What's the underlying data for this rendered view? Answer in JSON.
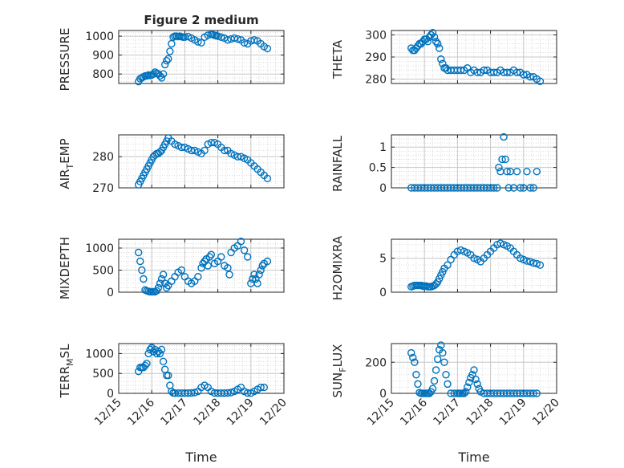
{
  "figure": {
    "title": "Figure 2 medium",
    "marker_color": "#0072BD"
  },
  "x_axis": {
    "label": "Time",
    "ticks": [
      "12/15",
      "12/16",
      "12/17",
      "12/18",
      "12/19",
      "12/20"
    ]
  },
  "chart_data": [
    {
      "type": "scatter",
      "ylabel": "PRESSURE",
      "title": "Figure 2 medium",
      "xlim": [
        15,
        20
      ],
      "ylim": [
        750,
        1030
      ],
      "yticks": [
        800,
        900,
        1000
      ],
      "x": [
        15.6,
        15.65,
        15.7,
        15.75,
        15.8,
        15.85,
        15.9,
        15.95,
        16.0,
        16.05,
        16.1,
        16.15,
        16.2,
        16.25,
        16.3,
        16.35,
        16.4,
        16.45,
        16.5,
        16.55,
        16.6,
        16.65,
        16.7,
        16.75,
        16.8,
        16.85,
        16.9,
        16.95,
        17.0,
        17.1,
        17.2,
        17.3,
        17.4,
        17.5,
        17.6,
        17.7,
        17.8,
        17.85,
        17.9,
        17.95,
        18.0,
        18.1,
        18.2,
        18.3,
        18.4,
        18.5,
        18.6,
        18.7,
        18.8,
        18.9,
        19.0,
        19.1,
        19.2,
        19.3,
        19.4,
        19.5
      ],
      "y": [
        760,
        775,
        780,
        785,
        790,
        790,
        795,
        792,
        795,
        800,
        810,
        805,
        800,
        790,
        780,
        800,
        850,
        870,
        880,
        920,
        960,
        995,
        1000,
        1000,
        998,
        1000,
        997,
        995,
        995,
        998,
        990,
        980,
        970,
        965,
        995,
        1005,
        1010,
        1008,
        1005,
        1003,
        1000,
        995,
        990,
        980,
        985,
        990,
        985,
        980,
        965,
        960,
        975,
        980,
        975,
        960,
        945,
        935
      ]
    },
    {
      "type": "scatter",
      "ylabel": "THETA",
      "xlim": [
        15,
        20
      ],
      "ylim": [
        278,
        302
      ],
      "yticks": [
        280,
        290,
        300
      ],
      "x": [
        15.6,
        15.65,
        15.7,
        15.75,
        15.8,
        15.85,
        15.9,
        15.95,
        16.0,
        16.05,
        16.1,
        16.15,
        16.2,
        16.25,
        16.3,
        16.35,
        16.4,
        16.45,
        16.5,
        16.55,
        16.6,
        16.65,
        16.7,
        16.8,
        16.9,
        17.0,
        17.1,
        17.2,
        17.3,
        17.4,
        17.5,
        17.6,
        17.7,
        17.8,
        17.9,
        18.0,
        18.1,
        18.2,
        18.3,
        18.4,
        18.5,
        18.6,
        18.7,
        18.8,
        18.9,
        19.0,
        19.1,
        19.2,
        19.3,
        19.4,
        19.5
      ],
      "y": [
        294,
        293,
        293,
        294,
        295,
        296,
        296,
        297,
        298,
        298,
        297,
        299,
        300,
        301,
        299,
        297,
        296,
        294,
        289,
        287,
        285,
        285,
        284,
        284,
        284,
        284,
        284,
        284,
        285,
        283,
        284,
        283,
        283,
        284,
        284,
        283,
        283,
        283,
        284,
        283,
        283,
        283,
        284,
        283,
        283,
        282,
        282,
        281,
        281,
        280,
        279
      ]
    },
    {
      "type": "scatter",
      "ylabel": "AIR_TEMP",
      "xlim": [
        15,
        20
      ],
      "ylim": [
        270,
        287
      ],
      "yticks": [
        270,
        280
      ],
      "x": [
        15.6,
        15.65,
        15.7,
        15.75,
        15.8,
        15.85,
        15.9,
        15.95,
        16.0,
        16.05,
        16.1,
        16.15,
        16.2,
        16.25,
        16.3,
        16.35,
        16.4,
        16.45,
        16.5,
        16.6,
        16.7,
        16.8,
        16.9,
        17.0,
        17.1,
        17.2,
        17.3,
        17.4,
        17.5,
        17.6,
        17.7,
        17.8,
        17.9,
        18.0,
        18.1,
        18.2,
        18.3,
        18.4,
        18.5,
        18.6,
        18.7,
        18.8,
        18.9,
        19.0,
        19.1,
        19.2,
        19.3,
        19.4,
        19.5
      ],
      "y": [
        271,
        272,
        273,
        274,
        275,
        276,
        277,
        278,
        279,
        280,
        280.5,
        281,
        281,
        281.5,
        282,
        283,
        284,
        285,
        286,
        285,
        284,
        283.5,
        283,
        283,
        282.5,
        282,
        282,
        281.5,
        281,
        282,
        284,
        284.5,
        284.5,
        284,
        283,
        282,
        282,
        281,
        280.5,
        280,
        280,
        279.5,
        279,
        278,
        277,
        276,
        275,
        274,
        273
      ]
    },
    {
      "type": "scatter",
      "ylabel": "RAINFALL",
      "xlim": [
        15,
        20
      ],
      "ylim": [
        0,
        1.3
      ],
      "yticks": [
        0,
        0.5,
        1
      ],
      "x": [
        15.6,
        15.7,
        15.8,
        15.9,
        16.0,
        16.1,
        16.2,
        16.3,
        16.4,
        16.5,
        16.6,
        16.7,
        16.8,
        16.9,
        17.0,
        17.1,
        17.2,
        17.3,
        17.4,
        17.5,
        17.6,
        17.7,
        17.8,
        17.9,
        18.0,
        18.1,
        18.2,
        18.25,
        18.3,
        18.35,
        18.4,
        18.45,
        18.5,
        18.55,
        18.6,
        18.7,
        18.8,
        18.9,
        19.0,
        19.1,
        19.2,
        19.3,
        19.4
      ],
      "y": [
        0,
        0,
        0,
        0,
        0,
        0,
        0,
        0,
        0,
        0,
        0,
        0,
        0,
        0,
        0,
        0,
        0,
        0,
        0,
        0,
        0,
        0,
        0,
        0,
        0,
        0,
        0,
        0.5,
        0.4,
        0.7,
        1.25,
        0.7,
        0.4,
        0,
        0.4,
        0,
        0.4,
        0,
        0,
        0.4,
        0,
        0,
        0.4
      ]
    },
    {
      "type": "scatter",
      "ylabel": "MIXDEPTH",
      "xlim": [
        15,
        20
      ],
      "ylim": [
        0,
        1200
      ],
      "yticks": [
        0,
        500,
        1000
      ],
      "x": [
        15.6,
        15.65,
        15.7,
        15.75,
        15.8,
        15.85,
        15.9,
        15.95,
        16.0,
        16.05,
        16.1,
        16.15,
        16.2,
        16.25,
        16.3,
        16.35,
        16.4,
        16.45,
        16.5,
        16.6,
        16.7,
        16.8,
        16.9,
        17.0,
        17.1,
        17.2,
        17.3,
        17.4,
        17.5,
        17.55,
        17.6,
        17.65,
        17.7,
        17.75,
        17.8,
        17.9,
        18.0,
        18.1,
        18.2,
        18.3,
        18.35,
        18.4,
        18.5,
        18.6,
        18.7,
        18.8,
        18.9,
        19.0,
        19.05,
        19.1,
        19.15,
        19.2,
        19.25,
        19.3,
        19.35,
        19.4,
        19.5
      ],
      "y": [
        900,
        700,
        500,
        300,
        50,
        30,
        20,
        10,
        10,
        10,
        10,
        30,
        100,
        200,
        300,
        400,
        200,
        100,
        150,
        250,
        350,
        450,
        500,
        350,
        250,
        200,
        250,
        350,
        550,
        650,
        700,
        750,
        600,
        800,
        850,
        650,
        700,
        800,
        600,
        550,
        400,
        900,
        1000,
        1050,
        1150,
        950,
        800,
        200,
        300,
        400,
        300,
        200,
        400,
        500,
        600,
        650,
        700
      ]
    },
    {
      "type": "scatter",
      "ylabel": "H2OMIXRA",
      "xlim": [
        15,
        20
      ],
      "ylim": [
        0,
        7.8
      ],
      "yticks": [
        0,
        5
      ],
      "x": [
        15.6,
        15.65,
        15.7,
        15.75,
        15.8,
        15.85,
        15.9,
        15.95,
        16.0,
        16.05,
        16.1,
        16.15,
        16.2,
        16.25,
        16.3,
        16.35,
        16.4,
        16.45,
        16.5,
        16.55,
        16.6,
        16.7,
        16.8,
        16.9,
        17.0,
        17.1,
        17.2,
        17.3,
        17.4,
        17.5,
        17.6,
        17.7,
        17.8,
        17.9,
        18.0,
        18.1,
        18.2,
        18.3,
        18.4,
        18.5,
        18.6,
        18.7,
        18.8,
        18.9,
        19.0,
        19.1,
        19.2,
        19.3,
        19.4,
        19.5
      ],
      "y": [
        0.8,
        0.9,
        1.0,
        1.0,
        1.0,
        1.0,
        1.0,
        0.9,
        0.9,
        0.9,
        0.8,
        0.8,
        0.8,
        0.9,
        1.0,
        1.2,
        1.5,
        2.0,
        2.5,
        3.0,
        3.5,
        4.0,
        4.8,
        5.5,
        6.0,
        6.2,
        6.0,
        5.8,
        5.5,
        5.0,
        4.8,
        4.5,
        5.0,
        5.5,
        6.0,
        6.5,
        7.0,
        7.2,
        7.0,
        6.8,
        6.5,
        6.0,
        5.5,
        5.0,
        4.8,
        4.6,
        4.5,
        4.3,
        4.2,
        4.0
      ]
    },
    {
      "type": "scatter",
      "ylabel": "TERR_MSL",
      "xlim": [
        15,
        20
      ],
      "ylim": [
        0,
        1250
      ],
      "yticks": [
        0,
        500,
        1000
      ],
      "x": [
        15.6,
        15.65,
        15.7,
        15.75,
        15.8,
        15.85,
        15.9,
        15.95,
        16.0,
        16.05,
        16.1,
        16.15,
        16.2,
        16.25,
        16.3,
        16.35,
        16.4,
        16.45,
        16.5,
        16.55,
        16.6,
        16.65,
        16.7,
        16.8,
        16.9,
        17.0,
        17.1,
        17.2,
        17.3,
        17.4,
        17.5,
        17.6,
        17.7,
        17.8,
        17.9,
        18.0,
        18.1,
        18.2,
        18.3,
        18.4,
        18.5,
        18.6,
        18.7,
        18.8,
        18.9,
        19.0,
        19.1,
        19.2,
        19.3,
        19.4
      ],
      "y": [
        550,
        650,
        650,
        650,
        700,
        750,
        1000,
        1100,
        1150,
        1050,
        1100,
        1000,
        1050,
        1000,
        1100,
        800,
        600,
        450,
        450,
        200,
        50,
        10,
        5,
        5,
        5,
        5,
        5,
        10,
        20,
        50,
        150,
        200,
        150,
        50,
        10,
        5,
        5,
        5,
        10,
        20,
        50,
        100,
        150,
        50,
        10,
        5,
        50,
        100,
        150,
        150
      ]
    },
    {
      "type": "scatter",
      "ylabel": "SUN_FLUX",
      "xlim": [
        15,
        20
      ],
      "ylim": [
        0,
        320
      ],
      "yticks": [
        0,
        200
      ],
      "x": [
        15.6,
        15.65,
        15.7,
        15.75,
        15.8,
        15.85,
        15.9,
        15.95,
        16.0,
        16.05,
        16.1,
        16.15,
        16.2,
        16.25,
        16.3,
        16.35,
        16.4,
        16.45,
        16.5,
        16.55,
        16.6,
        16.65,
        16.7,
        16.8,
        16.9,
        17.0,
        17.05,
        17.1,
        17.15,
        17.2,
        17.25,
        17.3,
        17.35,
        17.4,
        17.45,
        17.5,
        17.55,
        17.6,
        17.65,
        17.7,
        17.8,
        17.9,
        18.0,
        18.1,
        18.2,
        18.3,
        18.4,
        18.5,
        18.6,
        18.7,
        18.8,
        18.9,
        19.0,
        19.1,
        19.2,
        19.3,
        19.4
      ],
      "y": [
        260,
        230,
        200,
        120,
        60,
        5,
        0,
        0,
        0,
        0,
        0,
        0,
        10,
        30,
        80,
        150,
        220,
        280,
        310,
        260,
        200,
        120,
        60,
        0,
        0,
        0,
        0,
        0,
        0,
        0,
        10,
        40,
        70,
        100,
        120,
        150,
        90,
        60,
        30,
        10,
        0,
        0,
        0,
        0,
        0,
        0,
        0,
        0,
        0,
        0,
        0,
        0,
        0,
        0,
        0,
        0,
        0
      ]
    }
  ]
}
